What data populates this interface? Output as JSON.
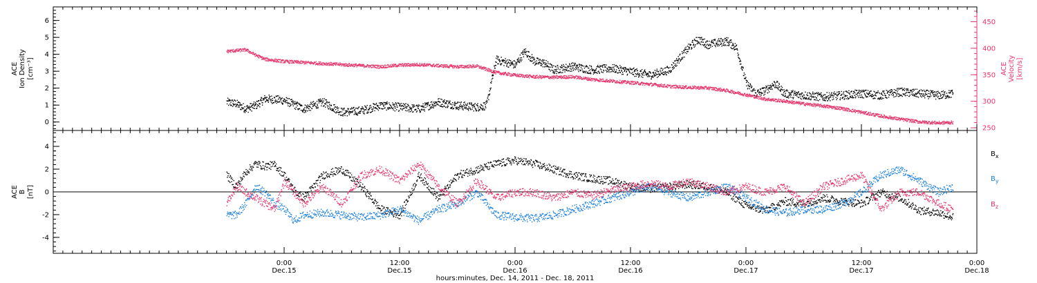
{
  "colors": {
    "density": "#000000",
    "velocity": "#e8336b",
    "bx": "#000000",
    "by": "#1a7fe0",
    "bz": "#e8336b",
    "axis": "#000000"
  },
  "chart_data": [
    {
      "id": "plasma",
      "type": "scatter",
      "x_unit": "hours since 2011-12-14 00:00",
      "xlim": [
        0,
        96
      ],
      "left_axis": {
        "label_lines": [
          "ACE",
          "Ion Density",
          "[cm⁻³]"
        ],
        "ylim": [
          -0.5,
          6.8
        ],
        "ticks": [
          0,
          1,
          2,
          3,
          4,
          5,
          6
        ],
        "tick_labels": [
          "0",
          "1",
          "2",
          "3",
          "4",
          "5",
          "6"
        ]
      },
      "right_axis": {
        "label_lines": [
          "ACE",
          "Velocity",
          "[km/s]"
        ],
        "ylim": [
          245,
          478
        ],
        "ticks": [
          250,
          300,
          350,
          400,
          450
        ],
        "tick_labels": [
          "250",
          "300",
          "350",
          "400",
          "450"
        ]
      },
      "series": [
        {
          "key": "density",
          "axis": "left",
          "x": [
            18,
            19,
            20,
            21,
            22,
            24,
            26,
            28,
            30,
            32,
            34,
            36,
            38,
            40,
            42,
            44,
            45,
            46,
            48,
            49,
            50,
            51,
            52,
            54,
            56,
            58,
            60,
            62,
            64,
            66,
            67,
            68,
            69,
            70,
            71,
            72,
            73,
            74,
            75,
            76,
            78,
            80,
            82,
            84,
            86,
            88,
            90,
            92,
            93.5
          ],
          "y": [
            1.2,
            1.1,
            0.8,
            1.0,
            1.4,
            1.3,
            0.8,
            1.2,
            0.6,
            0.7,
            1.0,
            0.9,
            0.8,
            1.2,
            1.0,
            0.9,
            1.0,
            3.7,
            3.4,
            4.2,
            3.6,
            3.5,
            3.1,
            3.3,
            3.1,
            3.2,
            3.0,
            2.8,
            3.1,
            4.4,
            4.9,
            4.6,
            4.7,
            4.8,
            4.4,
            2.3,
            1.7,
            1.9,
            2.3,
            1.7,
            1.6,
            1.5,
            1.6,
            1.7,
            1.6,
            1.8,
            1.7,
            1.6,
            1.7
          ]
        },
        {
          "key": "velocity",
          "axis": "right",
          "x": [
            18,
            20,
            21,
            22,
            24,
            26,
            28,
            30,
            32,
            34,
            36,
            38,
            40,
            42,
            44,
            46,
            48,
            50,
            52,
            54,
            56,
            58,
            60,
            62,
            64,
            66,
            68,
            70,
            72,
            74,
            76,
            78,
            80,
            82,
            84,
            86,
            88,
            90,
            92,
            93.5
          ],
          "y": [
            395,
            398,
            388,
            380,
            376,
            374,
            372,
            370,
            368,
            366,
            369,
            370,
            368,
            366,
            367,
            355,
            350,
            347,
            346,
            347,
            342,
            339,
            336,
            333,
            329,
            327,
            326,
            321,
            313,
            305,
            301,
            296,
            292,
            287,
            280,
            273,
            267,
            262,
            260,
            261
          ]
        }
      ],
      "scatter_amplitude": {
        "density": 0.25,
        "velocity": 3
      }
    },
    {
      "id": "field",
      "type": "scatter",
      "x_unit": "hours since 2011-12-14 00:00",
      "xlim": [
        0,
        96
      ],
      "y_axis": {
        "label_lines": [
          "ACE",
          "B",
          "[nT]"
        ],
        "ylim": [
          -5.4,
          5.4
        ],
        "ticks": [
          -4,
          -2,
          0,
          2,
          4
        ],
        "tick_labels": [
          "-4",
          "-2",
          "0",
          "2",
          "4"
        ]
      },
      "zero_line": true,
      "series": [
        {
          "key": "bx",
          "name": "Bx",
          "x": [
            18,
            19,
            20,
            21,
            22,
            23,
            24,
            25,
            26,
            28,
            30,
            32,
            34,
            36,
            38,
            40,
            42,
            44,
            46,
            48,
            50,
            52,
            54,
            56,
            58,
            60,
            62,
            64,
            66,
            68,
            70,
            72,
            74,
            76,
            78,
            80,
            82,
            84,
            86,
            88,
            90,
            92,
            93.5
          ],
          "y": [
            1.5,
            0.5,
            1.8,
            2.5,
            2.3,
            2.4,
            1.5,
            0.2,
            -0.5,
            1.5,
            2.0,
            0.5,
            -1.5,
            -2.0,
            1.5,
            -0.5,
            1.5,
            2.0,
            2.5,
            2.8,
            2.5,
            2.0,
            1.5,
            1.2,
            1.0,
            0.5,
            0.3,
            0.5,
            0.7,
            0.5,
            0.0,
            -1.2,
            -1.6,
            -0.8,
            -1.0,
            -0.5,
            -0.8,
            -1.0,
            0.0,
            -0.5,
            -1.6,
            -1.8,
            -2.2
          ]
        },
        {
          "key": "by",
          "name": "By",
          "x": [
            18,
            19,
            20,
            21,
            22,
            23,
            24,
            25,
            26,
            28,
            30,
            32,
            34,
            36,
            38,
            40,
            42,
            44,
            46,
            48,
            50,
            52,
            54,
            56,
            58,
            60,
            62,
            64,
            66,
            68,
            70,
            72,
            74,
            76,
            78,
            80,
            82,
            84,
            86,
            88,
            90,
            92,
            93.5
          ],
          "y": [
            -2.0,
            -2.0,
            -1.0,
            0.5,
            0.0,
            -1.0,
            -1.5,
            -2.5,
            -2.0,
            -1.8,
            -2.0,
            -2.2,
            -2.0,
            -1.5,
            -2.5,
            -1.5,
            -1.0,
            0.0,
            -2.0,
            -2.2,
            -2.3,
            -2.0,
            -1.5,
            -1.0,
            -0.5,
            0.0,
            0.5,
            0.0,
            -0.5,
            0.0,
            0.5,
            -0.5,
            -1.5,
            -1.8,
            -1.5,
            -1.5,
            -1.0,
            0.0,
            1.5,
            2.0,
            1.0,
            0.0,
            0.5
          ]
        },
        {
          "key": "bz",
          "name": "Bz",
          "x": [
            18,
            19,
            20,
            21,
            22,
            23,
            24,
            25,
            26,
            28,
            30,
            32,
            34,
            36,
            38,
            40,
            42,
            44,
            46,
            48,
            50,
            52,
            54,
            56,
            58,
            60,
            62,
            64,
            66,
            68,
            70,
            72,
            74,
            76,
            78,
            80,
            82,
            84,
            86,
            88,
            90,
            92,
            93.5
          ],
          "y": [
            -1.0,
            0.5,
            0.0,
            -0.5,
            -1.0,
            -1.5,
            1.0,
            0.0,
            -1.0,
            0.5,
            -1.0,
            1.5,
            2.0,
            1.0,
            2.5,
            0.5,
            -1.0,
            1.0,
            -0.5,
            0.0,
            0.0,
            -0.5,
            0.0,
            -0.3,
            0.2,
            0.5,
            0.8,
            0.5,
            1.0,
            0.5,
            0.0,
            0.5,
            0.0,
            0.5,
            -1.0,
            0.5,
            1.0,
            1.5,
            -1.5,
            0.0,
            0.0,
            -1.0,
            -1.5
          ]
        }
      ],
      "scatter_amplitude": 0.35
    }
  ],
  "legend": [
    {
      "key": "bx",
      "base": "B",
      "sub": "x"
    },
    {
      "key": "by",
      "base": "B",
      "sub": "y"
    },
    {
      "key": "bz",
      "base": "B",
      "sub": "z"
    }
  ],
  "x_axis": {
    "major_ticks": [
      24,
      36,
      48,
      60,
      72,
      84,
      96
    ],
    "time_labels": [
      "0:00",
      "12:00",
      "0:00",
      "12:00",
      "0:00",
      "12:00",
      "0:00"
    ],
    "date_labels": [
      "Dec.15",
      "Dec.15",
      "Dec.16",
      "Dec.16",
      "Dec.17",
      "Dec.17",
      "Dec.18"
    ],
    "minor_step": 1,
    "title": "hours:minutes, Dec. 14, 2011 - Dec. 18, 2011"
  }
}
